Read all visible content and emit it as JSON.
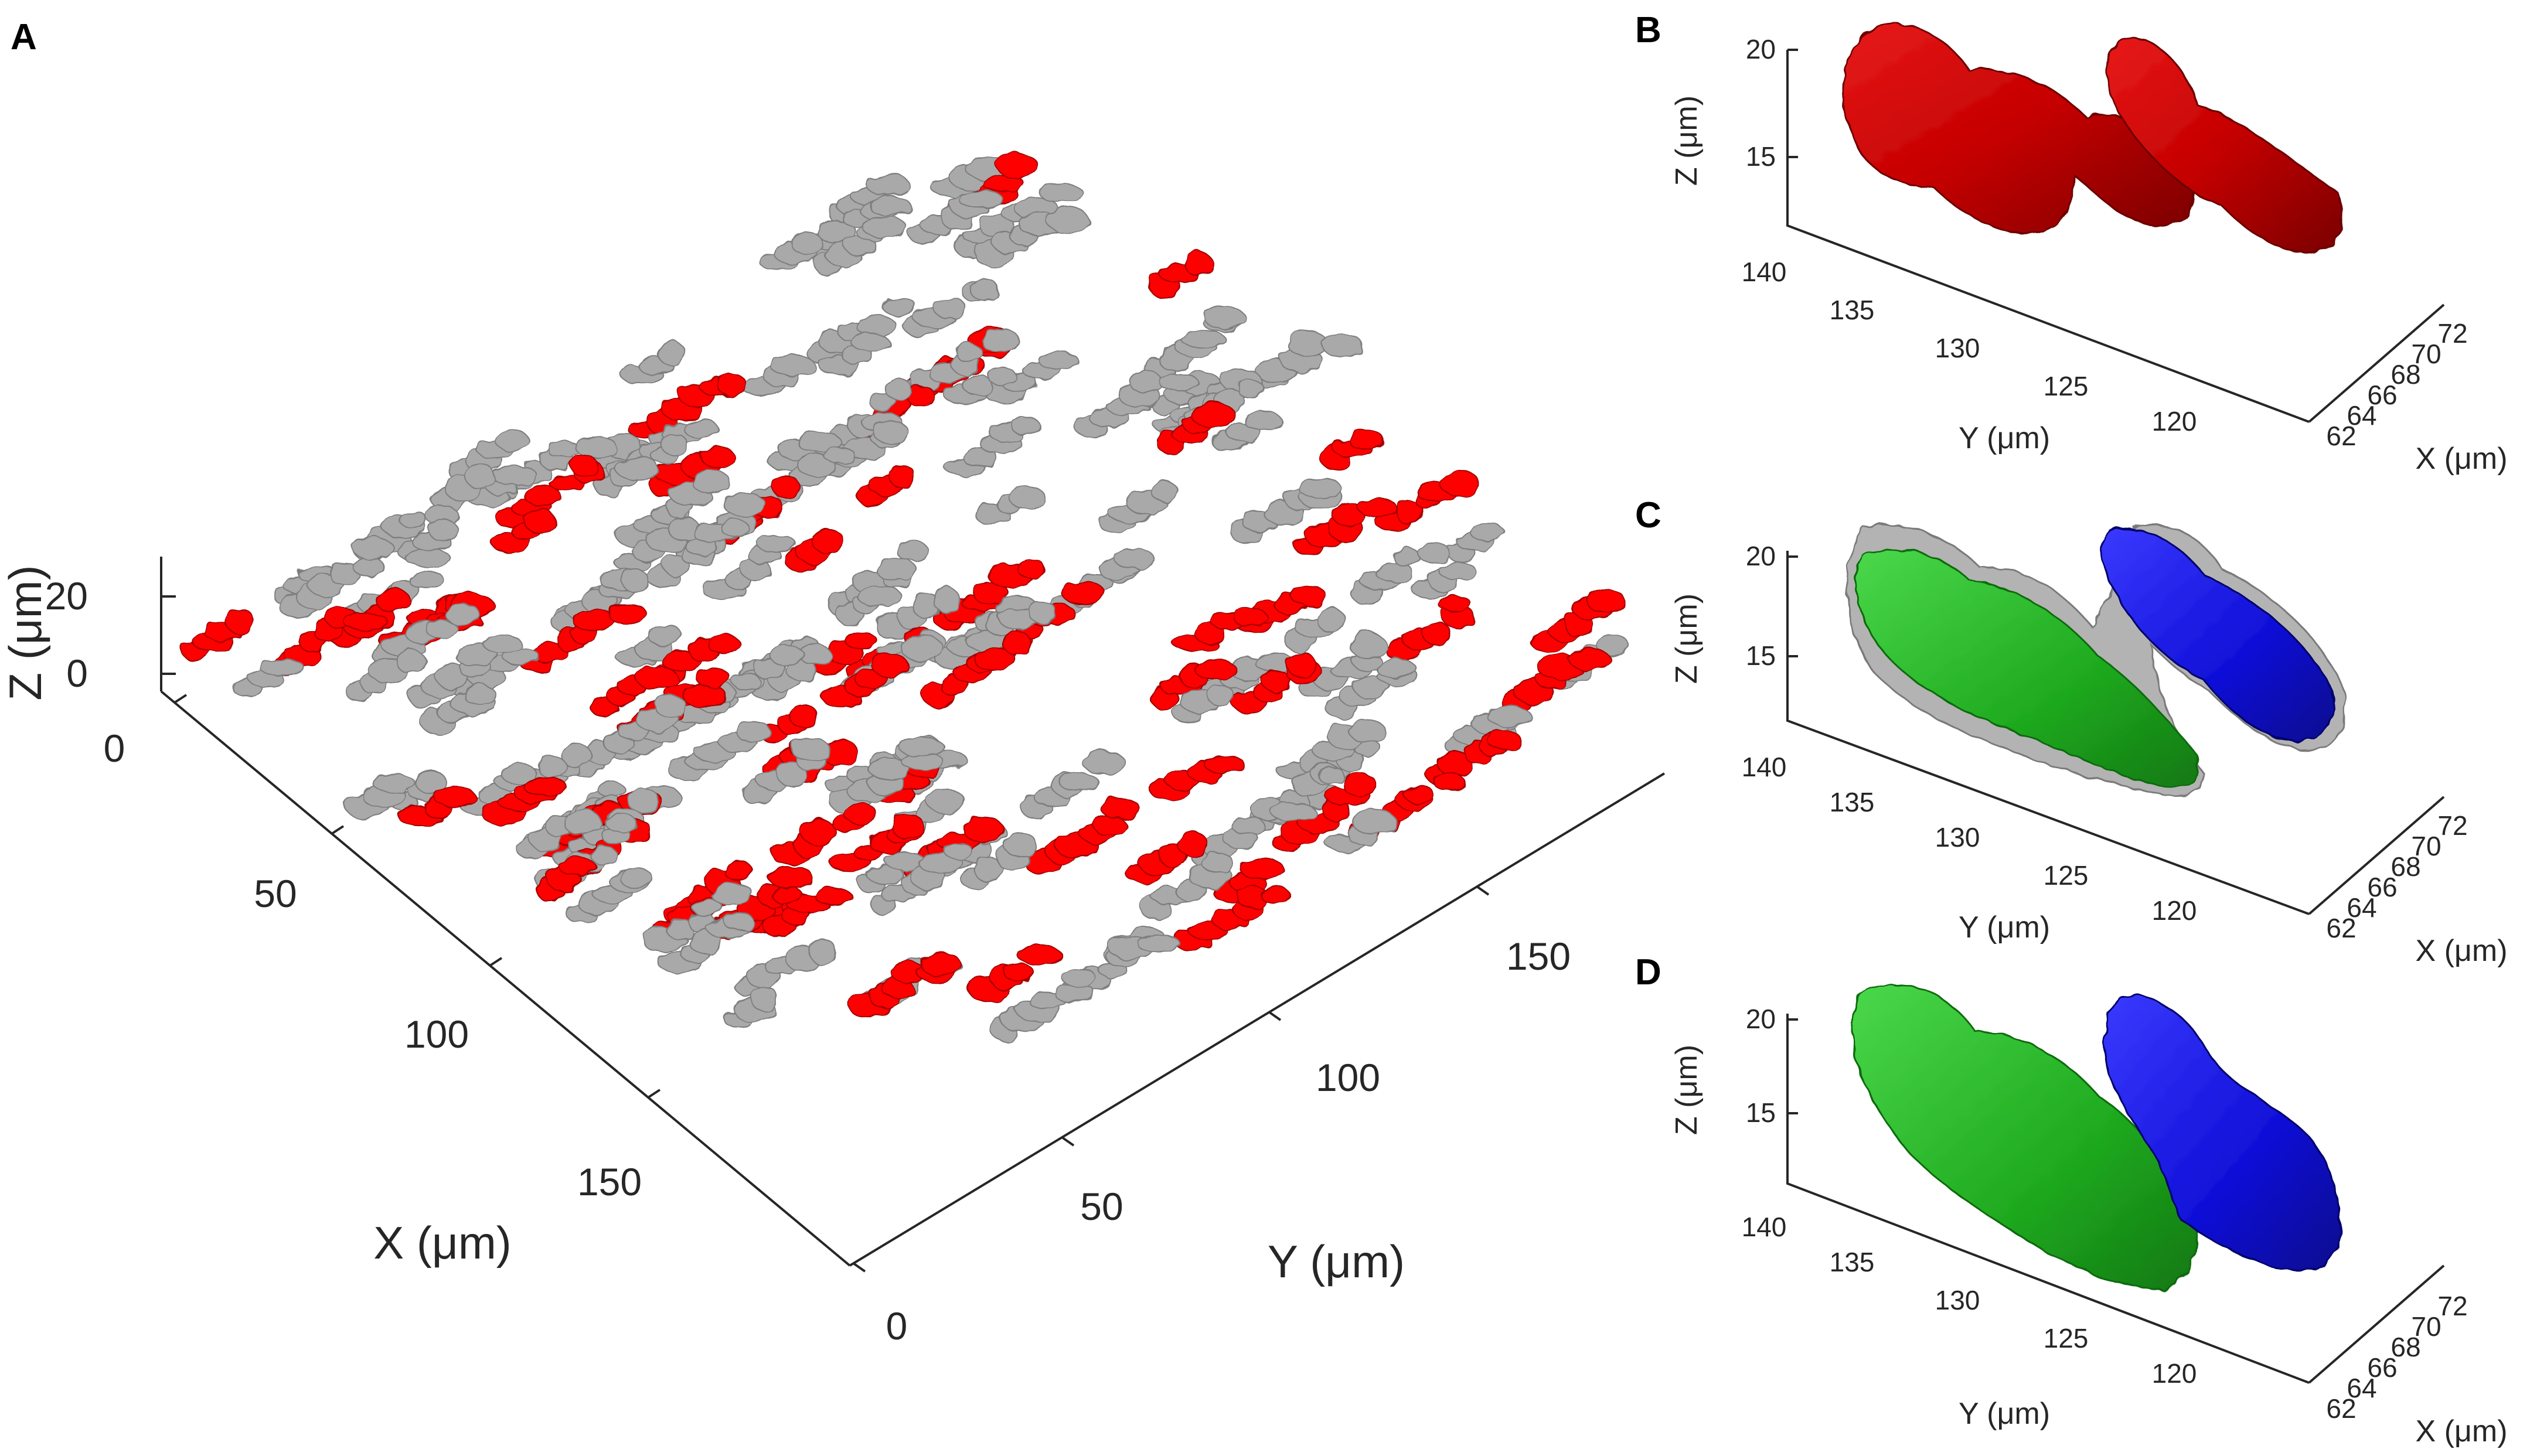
{
  "panels": {
    "A": {
      "letter": "A",
      "xlabel": "X (μm)",
      "ylabel": "Y (μm)",
      "zlabel": "Z (μm)",
      "x_ticks": [
        "0",
        "50",
        "100",
        "150"
      ],
      "y_ticks": [
        "0",
        "50",
        "100",
        "150"
      ],
      "z_ticks": [
        "0",
        "20"
      ]
    },
    "B": {
      "letter": "B",
      "xlabel": "X (μm)",
      "ylabel": "Y (μm)",
      "zlabel": "Z (μm)",
      "x_ticks": [
        "62",
        "64",
        "66",
        "68",
        "70",
        "72"
      ],
      "y_ticks": [
        "140",
        "135",
        "130",
        "125",
        "120"
      ],
      "z_ticks": [
        "20",
        "15"
      ]
    },
    "C": {
      "letter": "C",
      "xlabel": "X (μm)",
      "ylabel": "Y (μm)",
      "zlabel": "Z (μm)",
      "x_ticks": [
        "62",
        "64",
        "66",
        "68",
        "70",
        "72"
      ],
      "y_ticks": [
        "140",
        "135",
        "130",
        "125",
        "120"
      ],
      "z_ticks": [
        "20",
        "15"
      ]
    },
    "D": {
      "letter": "D",
      "xlabel": "X (μm)",
      "ylabel": "Y (μm)",
      "zlabel": "Z (μm)",
      "x_ticks": [
        "62",
        "64",
        "66",
        "68",
        "70",
        "72"
      ],
      "y_ticks": [
        "140",
        "135",
        "130",
        "125",
        "120"
      ],
      "z_ticks": [
        "20",
        "15"
      ]
    }
  },
  "colors": {
    "highlight_cells": "#ff0000",
    "other_cells": "#a9a9a9",
    "single_cell_red": "#d40000",
    "segment_green": "#22cc22",
    "segment_blue": "#1414e0",
    "envelope_gray": "#9a9a9a"
  },
  "chart_data": [
    {
      "panel": "A",
      "type": "scatter",
      "xlabel": "X (μm)",
      "ylabel": "Y (μm)",
      "zlabel": "Z (μm)",
      "xlim": [
        0,
        180
      ],
      "ylim": [
        0,
        180
      ],
      "zlim": [
        0,
        25
      ],
      "series": []
    },
    {
      "panel": "B",
      "type": "scatter",
      "xlabel": "X (μm)",
      "ylabel": "Y (μm)",
      "zlabel": "Z (μm)",
      "xlim": [
        62,
        72
      ],
      "ylim": [
        118,
        142
      ],
      "zlim": [
        10,
        21
      ],
      "series": []
    },
    {
      "panel": "C",
      "type": "scatter",
      "xlabel": "X (μm)",
      "ylabel": "Y (μm)",
      "zlabel": "Z (μm)",
      "xlim": [
        62,
        72
      ],
      "ylim": [
        118,
        142
      ],
      "zlim": [
        10,
        21
      ],
      "series": []
    },
    {
      "panel": "D",
      "type": "scatter",
      "xlabel": "X (μm)",
      "ylabel": "Y (μm)",
      "zlabel": "Z (μm)",
      "xlim": [
        62,
        72
      ],
      "ylim": [
        118,
        142
      ],
      "zlim": [
        10,
        21
      ],
      "series": []
    }
  ]
}
